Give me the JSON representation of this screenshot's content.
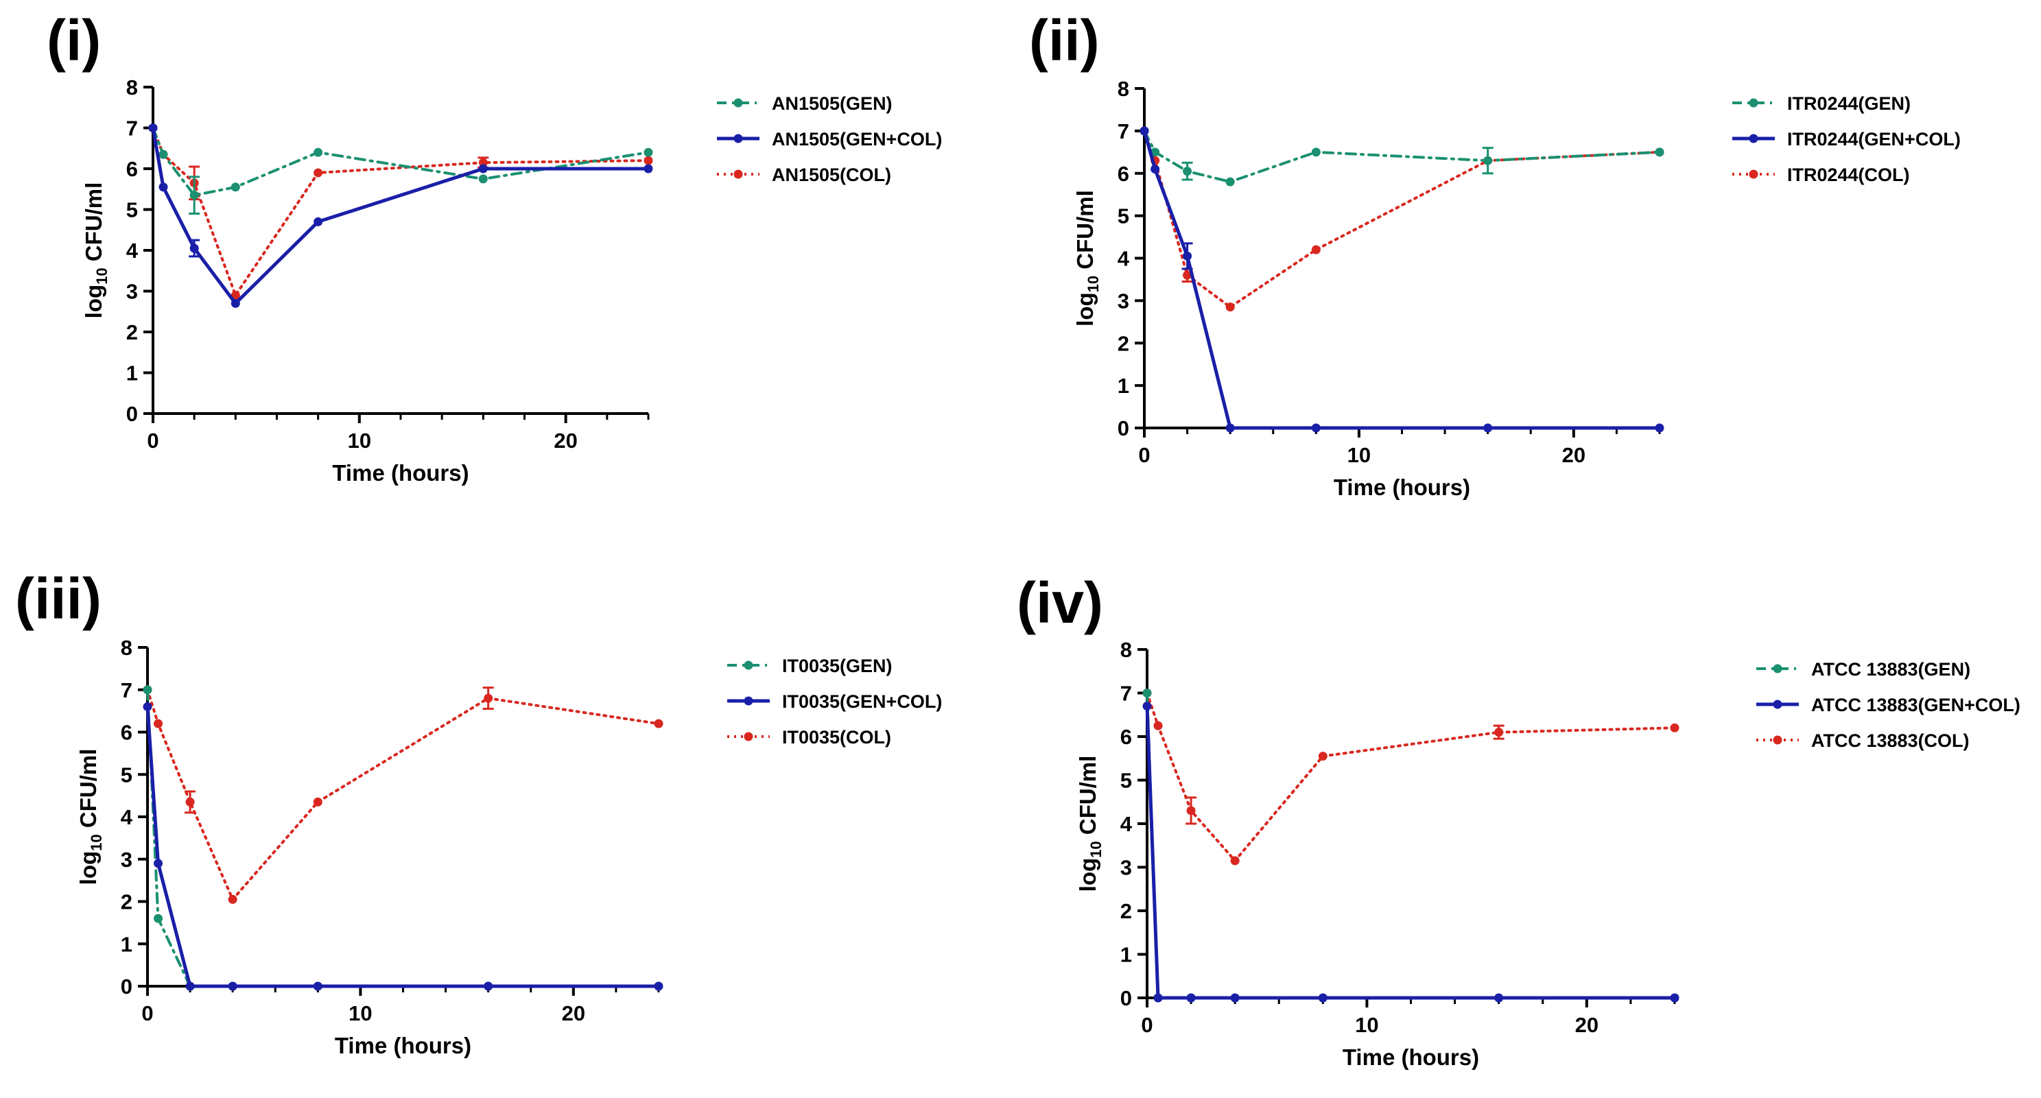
{
  "colors": {
    "GEN": "#1a9070",
    "GEN+COL": "#1a1fa8",
    "COL": "#d9271f",
    "axis": "#000000"
  },
  "icons": {
    "marker": "filled-circle",
    "error_bar": "capped-vertical-line"
  },
  "chart_data": [
    {
      "type": "line",
      "panel_label": "(i)",
      "xlabel": "Time (hours)",
      "ylabel": {
        "prefix": "log",
        "subscript": "10",
        "suffix": " CFU/ml"
      },
      "xlim": [
        0,
        24
      ],
      "ylim": [
        0,
        8
      ],
      "xticks": [
        0,
        10,
        20
      ],
      "yticks": [
        0,
        1,
        2,
        3,
        4,
        5,
        6,
        7,
        8
      ],
      "legend_position": "right",
      "series": [
        {
          "name": "AN1505(GEN)",
          "style": "dashdot",
          "color_key": "GEN",
          "x": [
            0,
            0.5,
            2,
            4,
            8,
            16,
            24
          ],
          "y": [
            7.0,
            6.35,
            5.35,
            5.55,
            6.4,
            5.75,
            6.4
          ],
          "err": [
            0,
            0,
            0.45,
            0,
            0,
            0,
            0
          ]
        },
        {
          "name": "AN1505(GEN+COL)",
          "style": "solid",
          "color_key": "GEN+COL",
          "x": [
            0,
            0.5,
            2,
            4,
            8,
            16,
            24
          ],
          "y": [
            7.0,
            5.55,
            4.05,
            2.7,
            4.7,
            6.0,
            6.0
          ],
          "err": [
            0,
            0,
            0.2,
            0,
            0,
            0,
            0
          ]
        },
        {
          "name": "AN1505(COL)",
          "style": "dotted",
          "color_key": "COL",
          "x": [
            0,
            0.5,
            2,
            4,
            8,
            16,
            24
          ],
          "y": [
            7.0,
            6.35,
            5.65,
            2.9,
            5.9,
            6.15,
            6.2
          ],
          "err": [
            0,
            0,
            0.4,
            0,
            0,
            0.12,
            0
          ]
        }
      ]
    },
    {
      "type": "line",
      "panel_label": "(ii)",
      "xlabel": "Time (hours)",
      "ylabel": {
        "prefix": "log",
        "subscript": "10",
        "suffix": " CFU/ml"
      },
      "xlim": [
        0,
        24
      ],
      "ylim": [
        0,
        8
      ],
      "xticks": [
        0,
        10,
        20
      ],
      "yticks": [
        0,
        1,
        2,
        3,
        4,
        5,
        6,
        7,
        8
      ],
      "legend_position": "right",
      "series": [
        {
          "name": "ITR0244(GEN)",
          "style": "dashdot",
          "color_key": "GEN",
          "x": [
            0,
            0.5,
            2,
            4,
            8,
            16,
            24
          ],
          "y": [
            7.0,
            6.5,
            6.05,
            5.8,
            6.5,
            6.3,
            6.5
          ],
          "err": [
            0,
            0,
            0.2,
            0,
            0,
            0.3,
            0
          ]
        },
        {
          "name": "ITR0244(GEN+COL)",
          "style": "solid",
          "color_key": "GEN+COL",
          "x": [
            0,
            0.5,
            2,
            4,
            8,
            16,
            24
          ],
          "y": [
            7.0,
            6.1,
            4.05,
            0,
            0,
            0,
            0
          ],
          "err": [
            0,
            0,
            0.3,
            0,
            0,
            0,
            0
          ]
        },
        {
          "name": "ITR0244(COL)",
          "style": "dotted",
          "color_key": "COL",
          "x": [
            0,
            0.5,
            2,
            4,
            8,
            16,
            24
          ],
          "y": [
            7.0,
            6.3,
            3.6,
            2.85,
            4.2,
            6.3,
            6.5
          ],
          "err": [
            0,
            0,
            0.15,
            0,
            0,
            0,
            0
          ]
        }
      ]
    },
    {
      "type": "line",
      "panel_label": "(iii)",
      "xlabel": "Time (hours)",
      "ylabel": {
        "prefix": "log",
        "subscript": "10",
        "suffix": " CFU/ml"
      },
      "xlim": [
        0,
        24
      ],
      "ylim": [
        0,
        8
      ],
      "xticks": [
        0,
        10,
        20
      ],
      "yticks": [
        0,
        1,
        2,
        3,
        4,
        5,
        6,
        7,
        8
      ],
      "legend_position": "right",
      "series": [
        {
          "name": "IT0035(GEN)",
          "style": "dashdot",
          "color_key": "GEN",
          "x": [
            0,
            0.5,
            2,
            4,
            8,
            16,
            24
          ],
          "y": [
            7.0,
            1.6,
            0,
            0,
            0,
            0,
            0
          ],
          "err": [
            0,
            0,
            0,
            0,
            0,
            0,
            0
          ]
        },
        {
          "name": "IT0035(GEN+COL)",
          "style": "solid",
          "color_key": "GEN+COL",
          "x": [
            0,
            0.5,
            2,
            4,
            8,
            16,
            24
          ],
          "y": [
            6.6,
            2.9,
            0,
            0,
            0,
            0,
            0
          ],
          "err": [
            0,
            0,
            0,
            0,
            0,
            0,
            0
          ]
        },
        {
          "name": "IT0035(COL)",
          "style": "dotted",
          "color_key": "COL",
          "x": [
            0,
            0.5,
            2,
            4,
            8,
            16,
            24
          ],
          "y": [
            7.0,
            6.2,
            4.35,
            2.05,
            4.35,
            6.8,
            6.2
          ],
          "err": [
            0,
            0,
            0.25,
            0,
            0,
            0.25,
            0
          ]
        }
      ]
    },
    {
      "type": "line",
      "panel_label": "(iv)",
      "xlabel": "Time (hours)",
      "ylabel": {
        "prefix": "log",
        "subscript": "10",
        "suffix": " CFU/ml"
      },
      "xlim": [
        0,
        24
      ],
      "ylim": [
        0,
        8
      ],
      "xticks": [
        0,
        10,
        20
      ],
      "yticks": [
        0,
        1,
        2,
        3,
        4,
        5,
        6,
        7,
        8
      ],
      "legend_position": "right",
      "series": [
        {
          "name": "ATCC 13883(GEN)",
          "style": "dashdot",
          "color_key": "GEN",
          "x": [
            0,
            0.5,
            2,
            4,
            8,
            16,
            24
          ],
          "y": [
            7.0,
            0,
            0,
            0,
            0,
            0,
            0
          ],
          "err": [
            0,
            0,
            0,
            0,
            0,
            0,
            0
          ]
        },
        {
          "name": "ATCC 13883(GEN+COL)",
          "style": "solid",
          "color_key": "GEN+COL",
          "x": [
            0,
            0.5,
            2,
            4,
            8,
            16,
            24
          ],
          "y": [
            6.7,
            0,
            0,
            0,
            0,
            0,
            0
          ],
          "err": [
            0,
            0,
            0,
            0,
            0,
            0,
            0
          ]
        },
        {
          "name": "ATCC 13883(COL)",
          "style": "dotted",
          "color_key": "COL",
          "x": [
            0,
            0.5,
            2,
            4,
            8,
            16,
            24
          ],
          "y": [
            7.0,
            6.25,
            4.3,
            3.15,
            5.55,
            6.1,
            6.2
          ],
          "err": [
            0,
            0,
            0.3,
            0,
            0,
            0.15,
            0
          ]
        }
      ]
    }
  ]
}
